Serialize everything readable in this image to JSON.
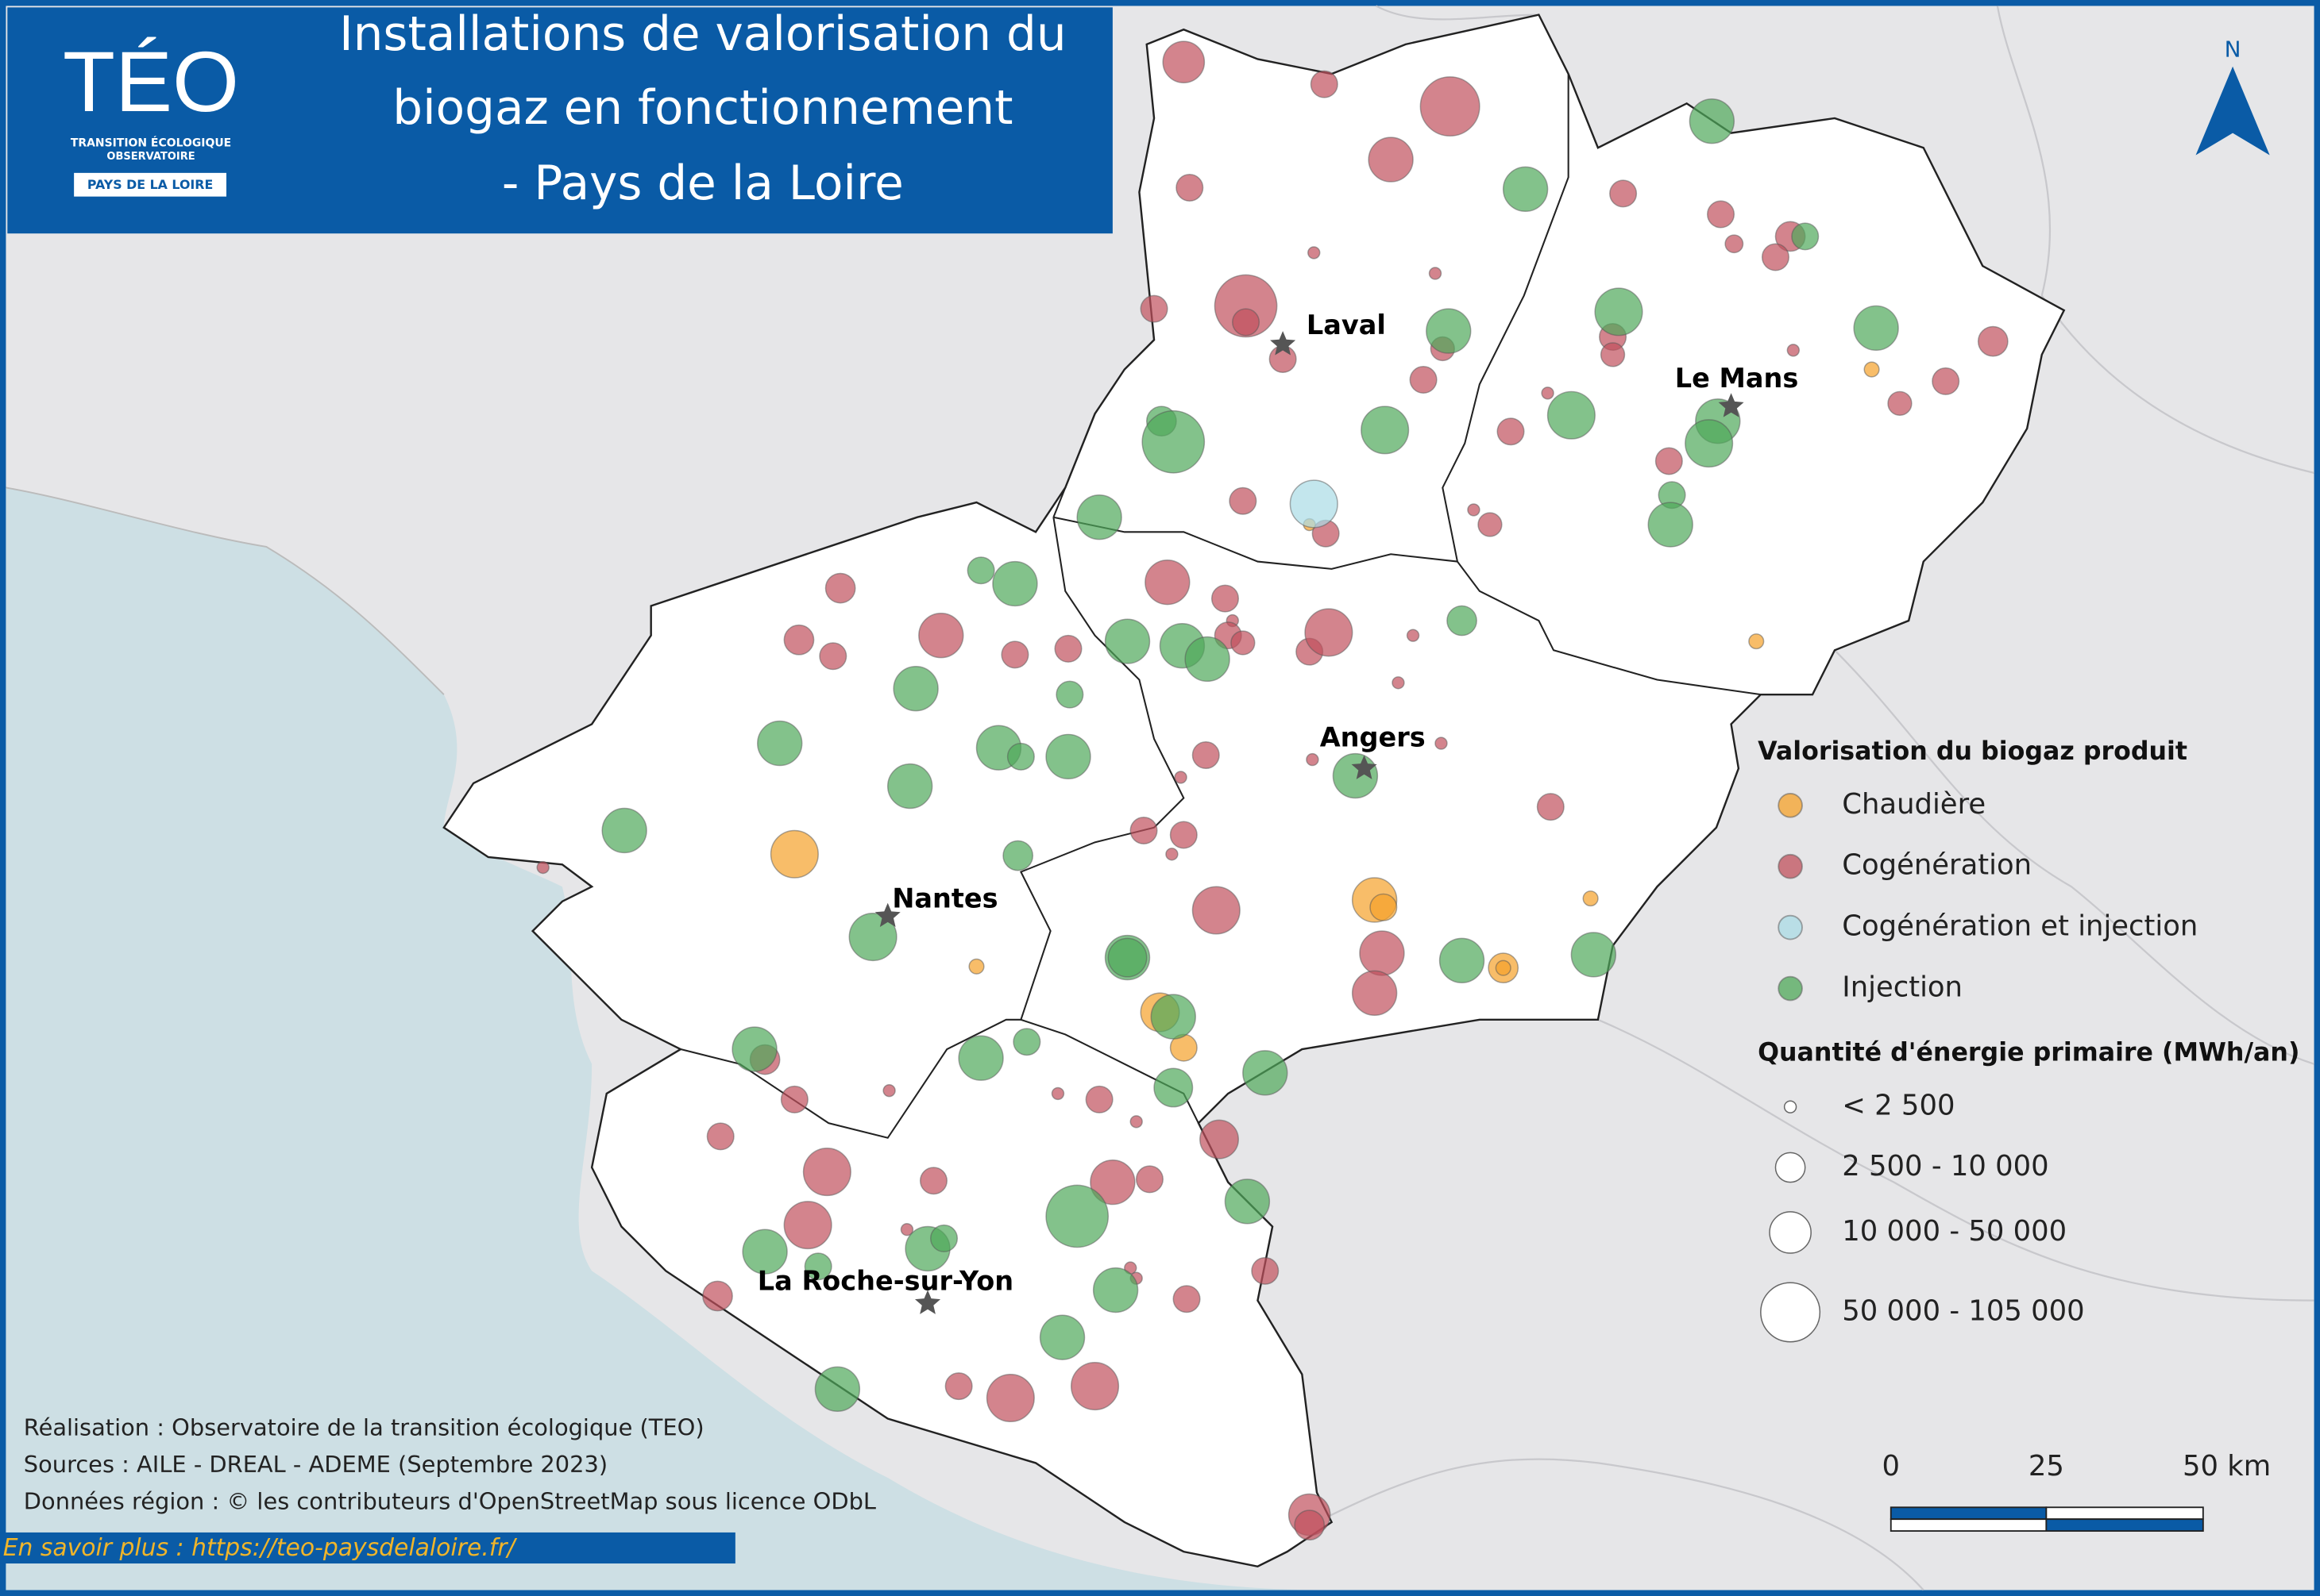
{
  "header": {
    "logo_title": "TÉO",
    "logo_line1": "TRANSITION ÉCOLOGIQUE",
    "logo_line2": "OBSERVATOIRE",
    "logo_region": "PAYS DE LA LOIRE",
    "title_lines": [
      "Installations de valorisation du",
      "biogaz en fonctionnement",
      "- Pays de la Loire"
    ]
  },
  "north": "N",
  "cities": [
    {
      "label": "Laval"
    },
    {
      "label": "Le Mans"
    },
    {
      "label": "Angers"
    },
    {
      "label": "Nantes"
    },
    {
      "label": "La Roche-sur-Yon"
    }
  ],
  "legend": {
    "title": "Valorisation du biogaz produit",
    "items": [
      {
        "label": "Chaudière",
        "color": "#f5a12a"
      },
      {
        "label": "Cogénération",
        "color": "#c0505c"
      },
      {
        "label": "Cogénération et injection",
        "color": "#a9dbe6"
      },
      {
        "label": "Injection",
        "color": "#4fa85a"
      }
    ],
    "size_title": "Quantité d'énergie primaire (MWh/an)",
    "sizes": [
      "< 2 500",
      "2 500 - 10 000",
      "10 000 - 50 000",
      "50 000 - 105 000"
    ]
  },
  "credits": [
    "Réalisation : Observatoire de la transition écologique (TEO)",
    "Sources : AILE - DREAL - ADEME (Septembre 2023)",
    "Données région : © les contributeurs d'OpenStreetMap sous licence ODbL"
  ],
  "link": "En savoir plus : https://teo-paysdelaloire.fr/",
  "scale": {
    "labels": [
      "0",
      "25",
      "50 km"
    ]
  }
}
